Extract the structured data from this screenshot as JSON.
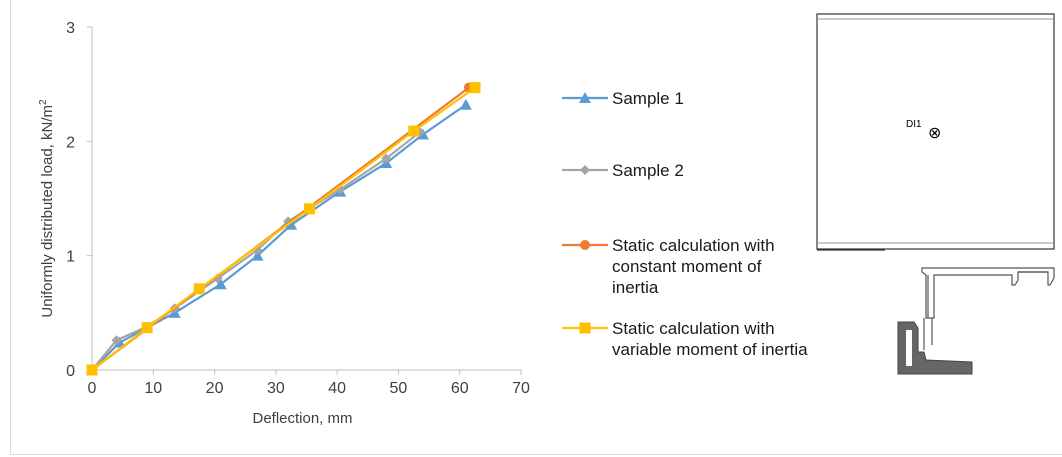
{
  "chart_data": {
    "type": "line",
    "xlabel": "Deflection, mm",
    "ylabel": "Uniformly distributed load, kN/m",
    "ylabel_superscript": "2",
    "xlim": [
      0,
      70
    ],
    "ylim": [
      0,
      3
    ],
    "xticks": [
      "0",
      "10",
      "20",
      "30",
      "40",
      "50",
      "60",
      "70"
    ],
    "yticks": [
      "0",
      "1",
      "2",
      "3"
    ],
    "grid": false,
    "legend_position": "right",
    "series": [
      {
        "name": "Sample 1",
        "color": "#5b9bd5",
        "marker": "triangle",
        "x": [
          0,
          4.5,
          13.5,
          21,
          27,
          32.5,
          40.5,
          48,
          54,
          61
        ],
        "y": [
          0,
          0.24,
          0.5,
          0.75,
          1.0,
          1.27,
          1.56,
          1.81,
          2.06,
          2.32
        ]
      },
      {
        "name": "Sample 2",
        "color": "#a5a5a5",
        "marker": "diamond",
        "x": [
          0,
          4,
          9,
          13.5,
          20.5,
          27,
          32,
          40.5,
          48,
          53.5
        ],
        "y": [
          0,
          0.26,
          0.38,
          0.54,
          0.8,
          1.05,
          1.3,
          1.58,
          1.85,
          2.08
        ]
      },
      {
        "name": "Static calculation with\nconstant moment of\ninertia",
        "color": "#ed7d31",
        "marker": "circle",
        "x": [
          0,
          61.5
        ],
        "y": [
          0,
          2.47
        ]
      },
      {
        "name": "Static calculation with\nvariable moment of inertia",
        "color": "#ffc000",
        "marker": "square",
        "x": [
          0,
          9,
          17.5,
          35.5,
          52.5,
          62.5
        ],
        "y": [
          0,
          0.37,
          0.71,
          1.41,
          2.09,
          2.47
        ]
      }
    ]
  },
  "diagram": {
    "point_label": "DI1",
    "point_symbol": "⊗"
  }
}
